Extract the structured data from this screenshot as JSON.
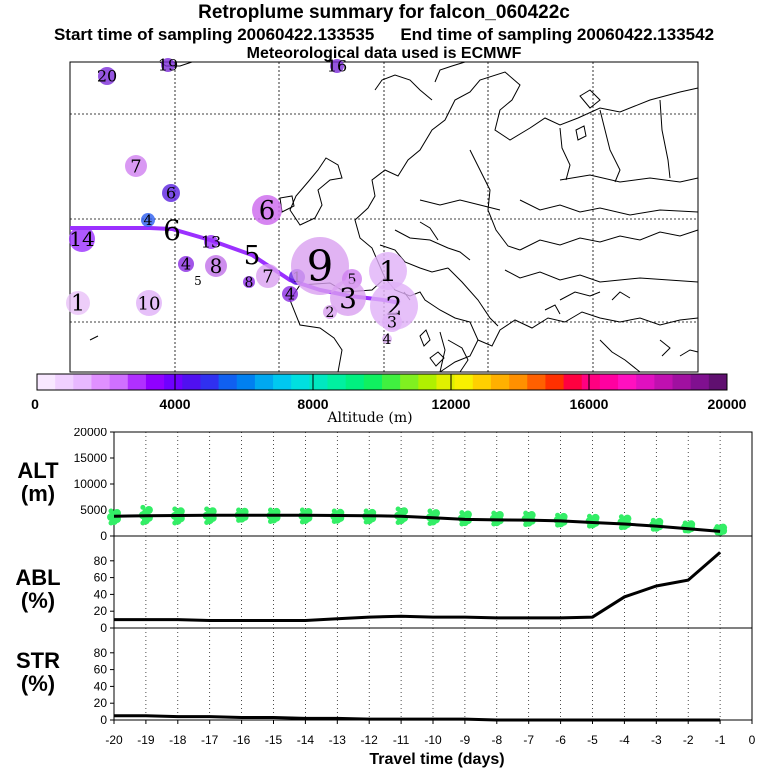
{
  "header": {
    "title": "Retroplume summary for falcon_060422c",
    "start_label": "Start time of sampling 20060422.133535",
    "end_label": "End time of sampling 20060422.133542",
    "met_label": "Meteorological data used is ECMWF"
  },
  "colors": {
    "trajectory": "#9b30ff",
    "alt_points": "#33ee66",
    "line": "#000000",
    "map_border": "#000000",
    "grid": "#000000"
  },
  "map": {
    "description_none": "",
    "labels": [
      {
        "text": "20",
        "color": "#7a2ad8"
      },
      {
        "text": "19",
        "color": "#7a2ad8"
      },
      {
        "text": "16",
        "color": "#7a2ad8"
      },
      {
        "text": "7",
        "color": "#d080f0"
      },
      {
        "text": "6",
        "color": "#5a20e0"
      },
      {
        "text": "4",
        "color": "#2a5cf0"
      },
      {
        "text": "6",
        "color": "#cc66ee"
      },
      {
        "text": "14",
        "color": "#9b30ff"
      },
      {
        "text": "6",
        "color": "#000000"
      },
      {
        "text": "13",
        "color": "#9b30ff"
      },
      {
        "text": "5",
        "color": "#000000"
      },
      {
        "text": "4",
        "color": "#8a2be2"
      },
      {
        "text": "8",
        "color": "#c070e8"
      },
      {
        "text": "5",
        "color": "#d9a0f0"
      },
      {
        "text": "8",
        "color": "#8a2be2"
      },
      {
        "text": "7",
        "color": "#d9a0f0"
      },
      {
        "text": "1",
        "color": "#6020e0"
      },
      {
        "text": "9",
        "color": "#d9a0f0"
      },
      {
        "text": "5",
        "color": "#d080f0"
      },
      {
        "text": "1",
        "color": "#e0b0f8"
      },
      {
        "text": "4",
        "color": "#8a2be2"
      },
      {
        "text": "1",
        "color": "#e8c0f8"
      },
      {
        "text": "10",
        "color": "#e0b0f8"
      },
      {
        "text": "3",
        "color": "#d9a0f0"
      },
      {
        "text": "2",
        "color": "#d9a0f0"
      },
      {
        "text": "2",
        "color": "#e0b0f8"
      },
      {
        "text": "3",
        "color": "#e0b0f8"
      },
      {
        "text": "4",
        "color": "#e0b0f8"
      }
    ]
  },
  "colorbar": {
    "ticks": [
      "0",
      "4000",
      "8000",
      "12000",
      "16000",
      "20000"
    ],
    "label": "Altitude (m)",
    "colors": [
      "#f8e8ff",
      "#f0d0ff",
      "#e8b8ff",
      "#e090ff",
      "#d070ff",
      "#b030ff",
      "#9000ff",
      "#7000ff",
      "#5010f0",
      "#3030f0",
      "#1060f0",
      "#0080f0",
      "#00a8f0",
      "#00c8f0",
      "#00e0e0",
      "#00e8c0",
      "#00f0a0",
      "#00f080",
      "#10f060",
      "#40f040",
      "#80f020",
      "#b0f000",
      "#e0f000",
      "#f8f000",
      "#ffd000",
      "#ffb000",
      "#ff9000",
      "#ff6000",
      "#ff3000",
      "#ff0040",
      "#ff0080",
      "#ff00a0",
      "#ff10c0",
      "#e010c0",
      "#c010b0",
      "#a010a0",
      "#801090",
      "#601070"
    ]
  },
  "chart_data": [
    {
      "type": "line",
      "title": "ALT (m)",
      "ylabel": "ALT (m)",
      "x": [
        -20,
        -19,
        -18,
        -17,
        -16,
        -15,
        -14,
        -13,
        -12,
        -11,
        -10,
        -9,
        -8,
        -7,
        -6,
        -5,
        -4,
        -3,
        -2,
        -1
      ],
      "values": [
        3800,
        3900,
        3950,
        4000,
        4000,
        4000,
        4000,
        3950,
        3900,
        3800,
        3500,
        3200,
        3100,
        3050,
        2900,
        2600,
        2300,
        1900,
        1400,
        900
      ],
      "ylim": [
        0,
        20000
      ],
      "yticks": [
        "0",
        "5000",
        "10000",
        "15000",
        "20000"
      ],
      "scatter_spread": [
        [
          2500,
          4800
        ],
        [
          2500,
          5500
        ],
        [
          2500,
          5200
        ],
        [
          2600,
          5200
        ],
        [
          3000,
          5000
        ],
        [
          2800,
          5000
        ],
        [
          2700,
          5000
        ],
        [
          2800,
          4800
        ],
        [
          2700,
          4800
        ],
        [
          2600,
          5200
        ],
        [
          2400,
          4800
        ],
        [
          2300,
          4500
        ],
        [
          2300,
          4400
        ],
        [
          2200,
          4400
        ],
        [
          2100,
          4000
        ],
        [
          1900,
          3800
        ],
        [
          1600,
          3700
        ],
        [
          1300,
          3000
        ],
        [
          1000,
          2500
        ],
        [
          600,
          1800
        ]
      ]
    },
    {
      "type": "line",
      "title": "ABL (%)",
      "ylabel": "ABL (%)",
      "x": [
        -20,
        -19,
        -18,
        -17,
        -16,
        -15,
        -14,
        -13,
        -12,
        -11,
        -10,
        -9,
        -8,
        -7,
        -6,
        -5,
        -4,
        -3,
        -2,
        -1
      ],
      "values": [
        10,
        10,
        10,
        9,
        9,
        9,
        9,
        11,
        13,
        14,
        13,
        13,
        12,
        12,
        12,
        13,
        37,
        50,
        57,
        90
      ],
      "ylim": [
        0,
        100
      ],
      "yticks": [
        "0",
        "20",
        "40",
        "60",
        "80"
      ]
    },
    {
      "type": "line",
      "title": "STR (%)",
      "ylabel": "STR (%)",
      "x": [
        -20,
        -19,
        -18,
        -17,
        -16,
        -15,
        -14,
        -13,
        -12,
        -11,
        -10,
        -9,
        -8,
        -7,
        -6,
        -5,
        -4,
        -3,
        -2,
        -1
      ],
      "values": [
        5,
        5,
        4,
        4,
        3,
        3,
        2,
        2,
        1,
        1,
        1,
        1,
        0,
        0,
        0,
        0,
        0,
        0,
        0,
        0
      ],
      "ylim": [
        0,
        100
      ],
      "yticks": [
        "0",
        "20",
        "40",
        "60",
        "80"
      ]
    }
  ],
  "xaxis": {
    "ticks": [
      "-20",
      "-19",
      "-18",
      "-17",
      "-16",
      "-15",
      "-14",
      "-13",
      "-12",
      "-11",
      "-10",
      "-9",
      "-8",
      "-7",
      "-6",
      "-5",
      "-4",
      "-3",
      "-2",
      "-1",
      "0"
    ],
    "label": "Travel time (days)"
  },
  "panels": {
    "alt_label_top": "ALT",
    "alt_label_bottom": "(m)",
    "abl_label_top": "ABL",
    "abl_label_bottom": "(%)",
    "str_label_top": "STR",
    "str_label_bottom": "(%)"
  }
}
